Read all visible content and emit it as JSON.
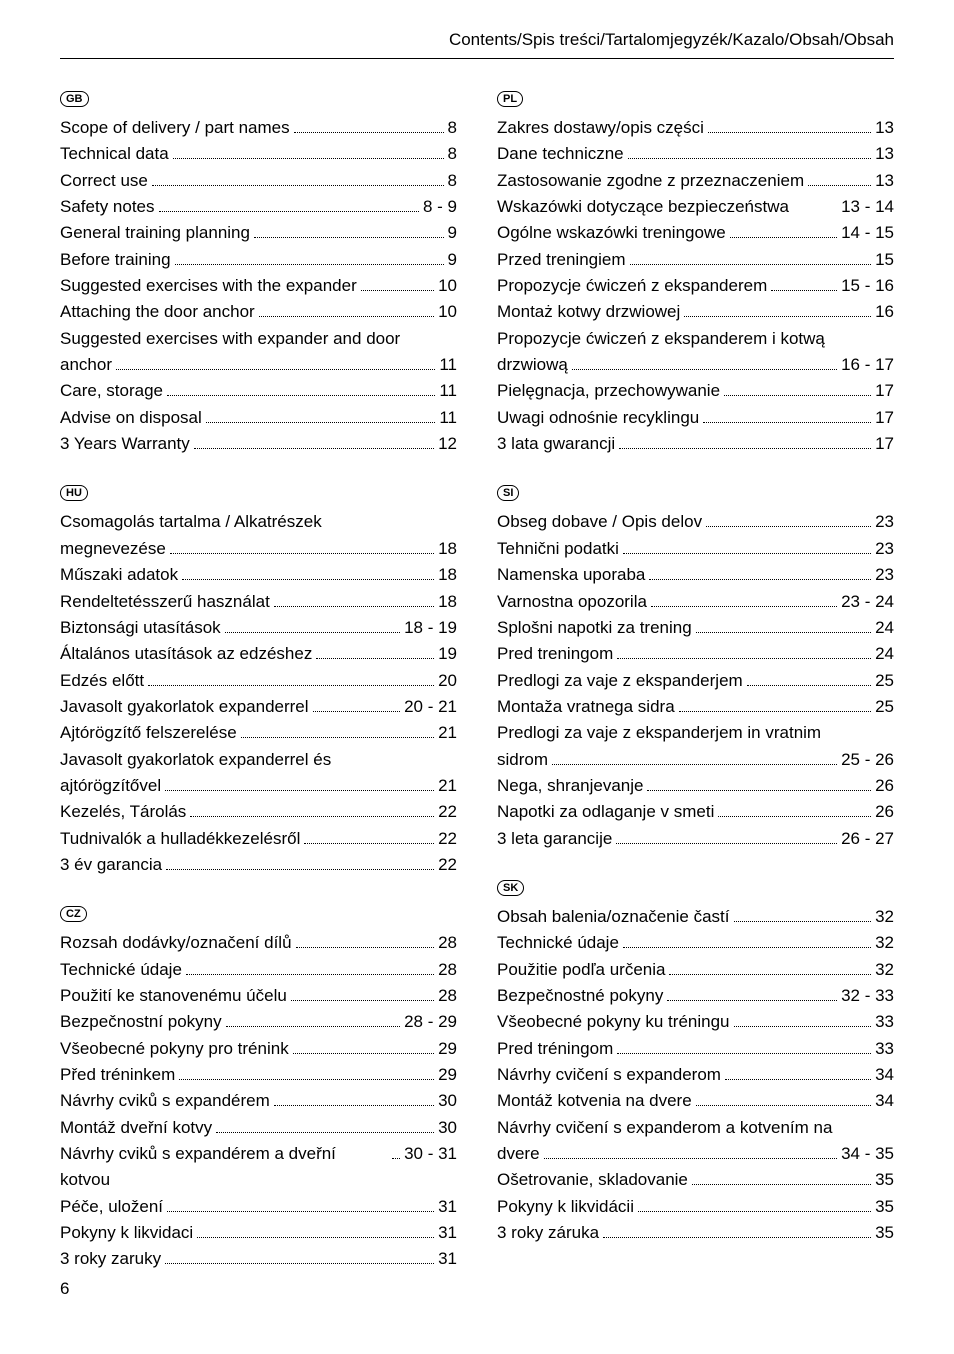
{
  "header": "Contents/Spis treści/Tartalomjegyzék/Kazalo/Obsah/Obsah",
  "page_number": "6",
  "sections": {
    "gb": {
      "code": "GB",
      "items": [
        {
          "label": "Scope of delivery / part names",
          "page": "8"
        },
        {
          "label": "Technical data",
          "page": "8"
        },
        {
          "label": "Correct use",
          "page": "8"
        },
        {
          "label": "Safety notes",
          "page": "8 - 9"
        },
        {
          "label": "General training planning",
          "page": "9"
        },
        {
          "label": "Before training",
          "page": "9"
        },
        {
          "label": "Suggested exercises with the expander",
          "page": "10"
        },
        {
          "label": "Attaching the door anchor",
          "page": "10"
        },
        {
          "label": "Suggested exercises with expander and door anchor",
          "page": "11",
          "wrap": true
        },
        {
          "label": "Care, storage",
          "page": "11"
        },
        {
          "label": "Advise on disposal",
          "page": "11"
        },
        {
          "label": "3 Years Warranty",
          "page": "12"
        }
      ]
    },
    "hu": {
      "code": "HU",
      "items": [
        {
          "label": "Csomagolás tartalma / Alkatrészek megnevezése",
          "page": "18",
          "wrap": true
        },
        {
          "label": "Műszaki adatok",
          "page": "18"
        },
        {
          "label": "Rendeltetésszerű használat",
          "page": "18"
        },
        {
          "label": "Biztonsági utasítások",
          "page": "18 - 19"
        },
        {
          "label": "Általános utasítások az edzéshez",
          "page": "19"
        },
        {
          "label": "Edzés előtt",
          "page": "20"
        },
        {
          "label": "Javasolt gyakorlatok expanderrel",
          "page": "20 - 21"
        },
        {
          "label": "Ajtórögzítő felszerelése",
          "page": "21"
        },
        {
          "label": "Javasolt gyakorlatok expanderrel és ajtórögzítővel",
          "page": "21",
          "wrap": true
        },
        {
          "label": "Kezelés, Tárolás",
          "page": "22"
        },
        {
          "label": "Tudnivalók a hulladékkezelésről",
          "page": "22"
        },
        {
          "label": "3 év garancia",
          "page": "22"
        }
      ]
    },
    "cz": {
      "code": "CZ",
      "items": [
        {
          "label": "Rozsah dodávky/označení dílů",
          "page": "28"
        },
        {
          "label": "Technické údaje",
          "page": "28"
        },
        {
          "label": "Použití ke stanovenému účelu",
          "page": "28"
        },
        {
          "label": "Bezpečnostní pokyny",
          "page": "28 - 29"
        },
        {
          "label": "Všeobecné pokyny pro trénink",
          "page": "29"
        },
        {
          "label": "Před tréninkem",
          "page": "29"
        },
        {
          "label": "Návrhy cviků s expandérem",
          "page": "30"
        },
        {
          "label": "Montáž dveřní kotvy",
          "page": "30"
        },
        {
          "label": "Návrhy cviků s expandérem a dveřní kotvou",
          "page": "30 - 31",
          "wrap": true
        },
        {
          "label": "Péče, uložení",
          "page": "31"
        },
        {
          "label": "Pokyny k likvidaci",
          "page": "31"
        },
        {
          "label": "3 roky zaruky",
          "page": "31"
        }
      ]
    },
    "pl": {
      "code": "PL",
      "items": [
        {
          "label": "Zakres dostawy/opis części",
          "page": "13"
        },
        {
          "label": "Dane techniczne",
          "page": "13"
        },
        {
          "label": "Zastosowanie zgodne z przeznaczeniem",
          "page": "13"
        },
        {
          "label": "Wskazówki dotyczące bezpieczeństwa",
          "page": "13 - 14",
          "nodots": true
        },
        {
          "label": "Ogólne wskazówki treningowe",
          "page": "14 - 15"
        },
        {
          "label": "Przed treningiem",
          "page": "15"
        },
        {
          "label": "Propozycje ćwiczeń z ekspanderem",
          "page": "15 - 16"
        },
        {
          "label": "Montaż kotwy drzwiowej",
          "page": "16"
        },
        {
          "label": "Propozycje ćwiczeń z ekspanderem i kotwą drzwiową",
          "page": "16 - 17",
          "wrap": true
        },
        {
          "label": "Pielęgnacja, przechowywanie",
          "page": "17"
        },
        {
          "label": "Uwagi odnośnie recyklingu",
          "page": "17"
        },
        {
          "label": "3 lata gwarancji",
          "page": "17"
        }
      ]
    },
    "si": {
      "code": "SI",
      "items": [
        {
          "label": "Obseg dobave / Opis delov",
          "page": "23"
        },
        {
          "label": "Tehnični podatki",
          "page": "23"
        },
        {
          "label": "Namenska uporaba",
          "page": "23"
        },
        {
          "label": "Varnostna opozorila",
          "page": "23 - 24"
        },
        {
          "label": "Splošni napotki za trening",
          "page": "24"
        },
        {
          "label": "Pred treningom",
          "page": "24"
        },
        {
          "label": "Predlogi za vaje z ekspanderjem",
          "page": "25"
        },
        {
          "label": "Montaža vratnega sidra",
          "page": "25"
        },
        {
          "label": "Predlogi za vaje z ekspanderjem in vratnim sidrom",
          "page": "25 - 26",
          "wrap": true
        },
        {
          "label": "Nega, shranjevanje",
          "page": "26"
        },
        {
          "label": "Napotki za odlaganje v smeti",
          "page": "26"
        },
        {
          "label": "3 leta garancije",
          "page": "26 - 27"
        }
      ]
    },
    "sk": {
      "code": "SK",
      "items": [
        {
          "label": "Obsah balenia/označenie častí",
          "page": "32"
        },
        {
          "label": "Technické údaje",
          "page": "32"
        },
        {
          "label": "Použitie podľa určenia",
          "page": "32"
        },
        {
          "label": "Bezpečnostné pokyny",
          "page": "32 - 33"
        },
        {
          "label": "Všeobecné pokyny ku tréningu",
          "page": "33"
        },
        {
          "label": "Pred tréningom",
          "page": "33"
        },
        {
          "label": "Návrhy cvičení s expanderom",
          "page": "34"
        },
        {
          "label": "Montáž kotvenia na dvere",
          "page": "34"
        },
        {
          "label": "Návrhy cvičení s expanderom a kotvením na dvere",
          "page": "34 - 35",
          "wrap": true
        },
        {
          "label": "Ošetrovanie, skladovanie",
          "page": "35"
        },
        {
          "label": "Pokyny k likvidácii",
          "page": "35"
        },
        {
          "label": "3 roky záruka",
          "page": "35"
        }
      ]
    }
  }
}
